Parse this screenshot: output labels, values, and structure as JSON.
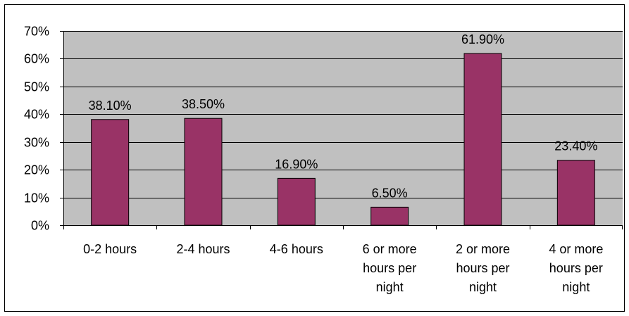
{
  "chart_data": {
    "type": "bar",
    "categories": [
      [
        "0-2 hours"
      ],
      [
        "2-4 hours"
      ],
      [
        "4-6 hours"
      ],
      [
        "6 or more",
        "hours per",
        "night"
      ],
      [
        "2 or more",
        "hours per",
        "night"
      ],
      [
        "4 or more",
        "hours per",
        "night"
      ]
    ],
    "values": [
      38.1,
      38.5,
      16.9,
      6.5,
      61.9,
      23.4
    ],
    "data_labels": [
      "38.10%",
      "38.50%",
      "16.90%",
      "6.50%",
      "61.90%",
      "23.40%"
    ],
    "y_ticks": [
      "0%",
      "10%",
      "20%",
      "30%",
      "40%",
      "50%",
      "60%",
      "70%"
    ],
    "ylim": [
      0,
      70
    ],
    "title": "",
    "xlabel": "",
    "ylabel": "",
    "grid": true,
    "legend": "none",
    "colors": {
      "bar": "#993366",
      "plot_background": "#C0C0C0",
      "gridline": "#000000",
      "frame": "#000000"
    }
  }
}
